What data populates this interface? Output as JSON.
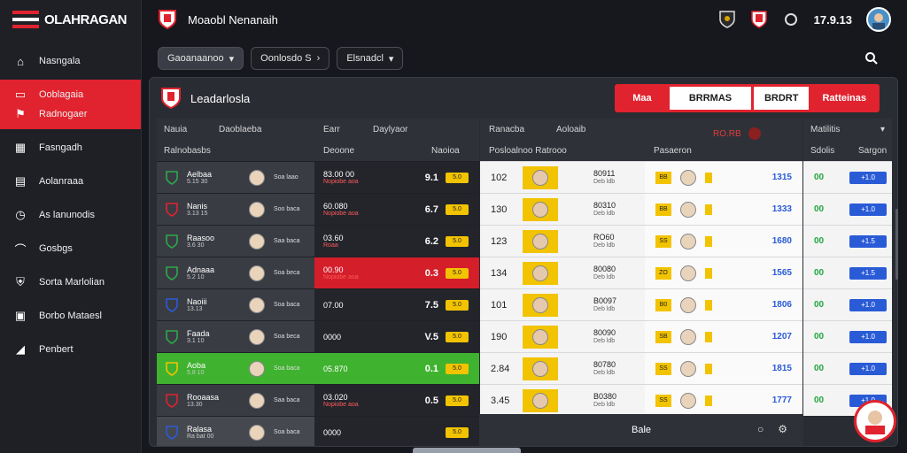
{
  "app": {
    "brand": "OLAHRAGAN"
  },
  "sidebar": {
    "items": [
      {
        "label": "Nasngala",
        "icon": "home-icon"
      },
      {
        "label": "Ooblagaia",
        "icon": "square-icon",
        "active": true
      },
      {
        "label": "Radnogaer",
        "icon": "flag-icon",
        "active": true
      },
      {
        "label": "Fasngadh",
        "icon": "building-icon"
      },
      {
        "label": "Aolanraaa",
        "icon": "chart-icon"
      },
      {
        "label": "As lanunodis",
        "icon": "clock-icon"
      },
      {
        "label": "Gosbgs",
        "icon": "hat-icon"
      },
      {
        "label": "Sorta Marlolian",
        "icon": "shield-icon"
      },
      {
        "label": "Borbo Mataesl",
        "icon": "grid-icon"
      },
      {
        "label": "Penbert",
        "icon": "megaphone-icon"
      }
    ]
  },
  "topbar": {
    "title": "Moaobl Nenanaih",
    "time": "17.9.13"
  },
  "filters": [
    {
      "label": "Gaoanaanoo",
      "selected": true
    },
    {
      "label": "Oonlosdo S",
      "selected": false
    },
    {
      "label": "Elsnadcl",
      "selected": false
    }
  ],
  "panel": {
    "title": "Leadarlosla",
    "tabs": [
      "Maa",
      "BRRMAS",
      "BRDRT",
      "Ratteinas"
    ]
  },
  "left_table": {
    "header_row1": [
      "Nauia",
      "Daoblaeba",
      "Earr",
      "Daylyaor"
    ],
    "header_row2": [
      "Ralnobasbs",
      "Deoone",
      "Naoioa"
    ],
    "rows": [
      {
        "team": "Aelbaa",
        "sub": "5.15 30",
        "player": "Soa laao",
        "score": "83.00 00",
        "note": "Nopiobe aoa",
        "odd": "9.1",
        "pill": "5.0"
      },
      {
        "team": "Nanis",
        "sub": "3.13 15",
        "player": "Soo baca",
        "score": "60.080",
        "note": "Nopiobe aoa",
        "odd": "6.7",
        "pill": "5.0"
      },
      {
        "team": "Raasoo",
        "sub": "3.6 30",
        "player": "Saa baca",
        "score": "03.60",
        "note": "Roaa",
        "odd": "6.2",
        "pill": "5.0"
      },
      {
        "team": "Adnaaa",
        "sub": "5.2 10",
        "player": "Soa beca",
        "score": "00.90",
        "note": "Nopiobe aoa",
        "odd": "0.3",
        "pill": "5.0"
      },
      {
        "team": "Naoiii",
        "sub": "13.13",
        "player": "Soa baca",
        "score": "07.00",
        "note": "",
        "odd": "7.5",
        "pill": "5.0"
      },
      {
        "team": "Faada",
        "sub": "3.1 10",
        "player": "Soa beca",
        "score": "0000",
        "note": "",
        "odd": "V.5",
        "pill": "5.0"
      },
      {
        "team": "Aoba",
        "sub": "5.8 10",
        "player": "Soa baca",
        "score": "05.870",
        "note": "",
        "odd": "0.1",
        "pill": "5.0"
      },
      {
        "team": "Rooaasa",
        "sub": "13.30",
        "player": "Saa baca",
        "score": "03.020",
        "note": "Nopiobe aoa",
        "odd": "0.5",
        "pill": "5.0"
      },
      {
        "team": "Ralasa",
        "sub": "Ra bat 00",
        "player": "Soa baca",
        "score": "0000",
        "note": "",
        "odd": "",
        "pill": "5.0"
      }
    ]
  },
  "mid_table": {
    "header_row1": [
      "Ranacba",
      "Aoloaib"
    ],
    "header_row2": [
      "Posloalnoo Ratrooo"
    ],
    "extra": "RO.RB",
    "rows": [
      {
        "num": "102",
        "code": "80911",
        "sub": "Deb ldb"
      },
      {
        "num": "130",
        "code": "80310",
        "sub": "Deb ldb"
      },
      {
        "num": "123",
        "code": "RO60",
        "sub": "Deb ldb"
      },
      {
        "num": "134",
        "code": "80080",
        "sub": "Deb ldb"
      },
      {
        "num": "101",
        "code": "B0097",
        "sub": "Deb ldb"
      },
      {
        "num": "190",
        "code": "80090",
        "sub": "Deb ldb"
      },
      {
        "num": "2.84",
        "code": "80780",
        "sub": "Deb ldb"
      },
      {
        "num": "3.45",
        "code": "B0380",
        "sub": "Deb ldb"
      }
    ],
    "footer": "Bale"
  },
  "third_col": {
    "header": "Pasaeron",
    "rows": [
      {
        "badge": "BB",
        "val": "1315"
      },
      {
        "badge": "BB",
        "val": "1333"
      },
      {
        "badge": "SS",
        "val": "1680"
      },
      {
        "badge": "ZO",
        "val": "1565"
      },
      {
        "badge": "B0",
        "val": "1806"
      },
      {
        "badge": "SB",
        "val": "1207"
      },
      {
        "badge": "SS",
        "val": "1815"
      },
      {
        "badge": "SS",
        "val": "1777"
      }
    ]
  },
  "right_table": {
    "header_row1": [
      "Matilitis"
    ],
    "header_row2": [
      "Sdolis",
      "Sargon"
    ],
    "rows": [
      {
        "g": "00",
        "b": "+1.0"
      },
      {
        "g": "00",
        "b": "+1.0"
      },
      {
        "g": "00",
        "b": "+1.5"
      },
      {
        "g": "00",
        "b": "+1.5"
      },
      {
        "g": "00",
        "b": "+1.0"
      },
      {
        "g": "00",
        "b": "+1.0"
      },
      {
        "g": "00",
        "b": "+1.0"
      },
      {
        "g": "00",
        "b": "+1.0"
      }
    ]
  },
  "colors": {
    "accent": "#e0232e",
    "green": "#3fb22f",
    "blue": "#2a5bd7",
    "yellow": "#f2c300"
  }
}
